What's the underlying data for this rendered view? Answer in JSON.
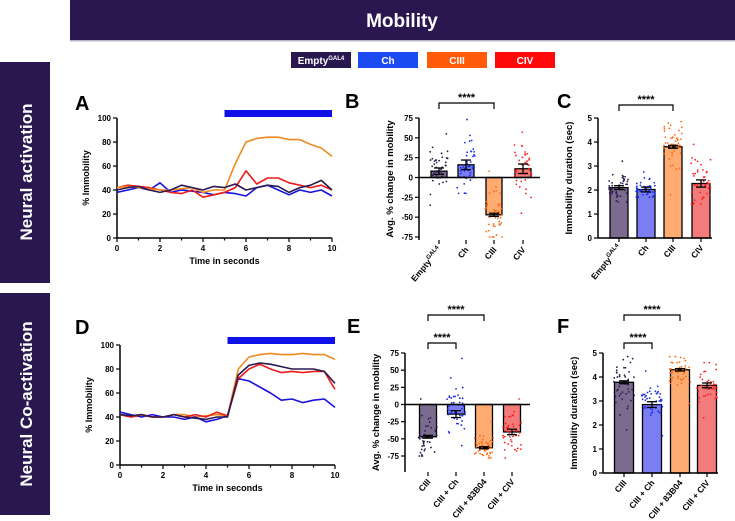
{
  "banner": {
    "title": "Mobility",
    "color": "#2b1750"
  },
  "legend": [
    {
      "label": "Empty",
      "sup": "GAL4",
      "color": "#2b1750"
    },
    {
      "label": "Ch",
      "color": "#1a4af0"
    },
    {
      "label": "CIII",
      "color": "#ff5a0a"
    },
    {
      "label": "CIV",
      "color": "#ff0a0a"
    }
  ],
  "row_labels": [
    "Neural activation",
    "Neural Co-activation"
  ],
  "chart_data": [
    {
      "panel": "A",
      "type": "line",
      "xlabel": "Time in seconds",
      "ylabel": "% Immobility",
      "xlim": [
        0,
        10
      ],
      "ylim": [
        0,
        100
      ],
      "xticks": [
        "0",
        "2",
        "4",
        "6",
        "8",
        "10"
      ],
      "yticks": [
        "0",
        "20",
        "40",
        "60",
        "80",
        "100"
      ],
      "stimulus": [
        5,
        10
      ],
      "stimulus_color": "#1010e8",
      "x": [
        0,
        0.5,
        1,
        1.5,
        2,
        2.5,
        3,
        3.5,
        4,
        4.5,
        5,
        5.5,
        6,
        6.5,
        7,
        7.5,
        8,
        8.5,
        9,
        9.5,
        10
      ],
      "series": [
        {
          "color": "#1a10e0",
          "values": [
            38,
            40,
            42,
            40,
            46,
            38,
            40,
            39,
            38,
            36,
            38,
            37,
            35,
            42,
            44,
            40,
            36,
            40,
            38,
            40,
            35
          ]
        },
        {
          "color": "#ef1a1a",
          "values": [
            42,
            44,
            43,
            42,
            40,
            38,
            37,
            40,
            34,
            36,
            38,
            42,
            56,
            45,
            50,
            50,
            46,
            44,
            42,
            44,
            40
          ]
        },
        {
          "color": "#f08a20",
          "values": [
            42,
            43,
            42,
            41,
            40,
            40,
            41,
            42,
            38,
            40,
            40,
            62,
            80,
            83,
            84,
            84,
            82,
            82,
            78,
            75,
            68
          ]
        },
        {
          "color": "#2b1a50",
          "values": [
            40,
            42,
            43,
            40,
            38,
            40,
            44,
            42,
            40,
            43,
            42,
            45,
            40,
            42,
            44,
            43,
            38,
            42,
            44,
            48,
            40
          ]
        }
      ]
    },
    {
      "panel": "B",
      "type": "bar",
      "ylabel": "Avg. % change in mobility",
      "ylim": [
        -75,
        75
      ],
      "yticks": [
        "-75",
        "-50",
        "-25",
        "0",
        "25",
        "50",
        "75"
      ],
      "categories": [
        {
          "label": "Empty",
          "sup": "GAL4"
        },
        {
          "label": "Ch"
        },
        {
          "label": "CIII"
        },
        {
          "label": "CIV"
        }
      ],
      "values": [
        8,
        16,
        -47,
        11
      ],
      "sem": [
        4,
        6,
        2,
        6
      ],
      "point_range": [
        [
          -35,
          55
        ],
        [
          -20,
          73
        ],
        [
          -75,
          8
        ],
        [
          -45,
          57
        ]
      ],
      "bar_colors": [
        "#7b6b8f",
        "#7a7ef2",
        "#ffab72",
        "#f37b7b"
      ],
      "point_colors": [
        "#2b1a50",
        "#1a2ee8",
        "#ff6a10",
        "#ff2020"
      ],
      "significance": [
        {
          "from": 0,
          "to": 2,
          "label": "****"
        }
      ]
    },
    {
      "panel": "C",
      "type": "bar",
      "ylabel": "Immobility duration (sec)",
      "ylim": [
        0,
        5
      ],
      "yticks": [
        "0",
        "1",
        "2",
        "3",
        "4",
        "5"
      ],
      "categories": [
        {
          "label": "Empty",
          "sup": "GAL4"
        },
        {
          "label": "Ch"
        },
        {
          "label": "CIII"
        },
        {
          "label": "CIV"
        }
      ],
      "values": [
        2.1,
        2.02,
        3.8,
        2.27
      ],
      "sem": [
        0.08,
        0.1,
        0.06,
        0.15
      ],
      "point_range": [
        [
          1.5,
          3.2
        ],
        [
          1.7,
          2.75
        ],
        [
          1.8,
          4.85
        ],
        [
          1.4,
          3.9
        ]
      ],
      "bar_colors": [
        "#7b6b8f",
        "#7a7ef2",
        "#ffab72",
        "#f37b7b"
      ],
      "point_colors": [
        "#2b1a50",
        "#1a2ee8",
        "#ff6a10",
        "#ff2020"
      ],
      "significance": [
        {
          "from": 0,
          "to": 2,
          "label": "****"
        }
      ]
    },
    {
      "panel": "D",
      "type": "line",
      "xlabel": "Time in seconds",
      "ylabel": "% Immobility",
      "xlim": [
        0,
        10
      ],
      "ylim": [
        0,
        100
      ],
      "xticks": [
        "0",
        "2",
        "4",
        "6",
        "8",
        "10"
      ],
      "yticks": [
        "0",
        "20",
        "40",
        "60",
        "80",
        "100"
      ],
      "stimulus": [
        5,
        10
      ],
      "stimulus_color": "#1010e8",
      "x": [
        0,
        0.5,
        1,
        1.5,
        2,
        2.5,
        3,
        3.5,
        4,
        4.5,
        5,
        5.5,
        6,
        6.5,
        7,
        7.5,
        8,
        8.5,
        9,
        9.5,
        10
      ],
      "series": [
        {
          "color": "#f08a20",
          "values": [
            42,
            40,
            41,
            40,
            40,
            42,
            42,
            40,
            41,
            42,
            41,
            80,
            90,
            92,
            93,
            92,
            92,
            93,
            92,
            92,
            88
          ]
        },
        {
          "color": "#1a10e0",
          "values": [
            44,
            42,
            40,
            42,
            40,
            40,
            38,
            40,
            36,
            38,
            41,
            72,
            70,
            65,
            60,
            54,
            55,
            52,
            54,
            55,
            48
          ]
        },
        {
          "color": "#ef1a1a",
          "values": [
            42,
            40,
            42,
            40,
            40,
            42,
            40,
            42,
            40,
            44,
            41,
            72,
            80,
            84,
            80,
            77,
            78,
            77,
            78,
            78,
            63
          ]
        },
        {
          "color": "#2b1a50",
          "values": [
            42,
            41,
            42,
            40,
            40,
            42,
            40,
            39,
            38,
            40,
            40,
            75,
            83,
            85,
            84,
            82,
            80,
            80,
            80,
            78,
            68
          ]
        }
      ]
    },
    {
      "panel": "E",
      "type": "bar",
      "ylabel": "Avg. % change in mobility",
      "ylim": [
        -75,
        75
      ],
      "yticks": [
        "-75",
        "-50",
        "-25",
        "0",
        "25",
        "50",
        "75"
      ],
      "categories": [
        {
          "label": "CIII"
        },
        {
          "label": "CIII + Ch"
        },
        {
          "label": "CIII + 83B04"
        },
        {
          "label": "CIII + CIV"
        }
      ],
      "values": [
        -47,
        -14,
        -63,
        -40
      ],
      "sem": [
        2,
        5,
        1.5,
        4
      ],
      "point_range": [
        [
          -75,
          8
        ],
        [
          -60,
          67
        ],
        [
          -78,
          -25
        ],
        [
          -78,
          8
        ]
      ],
      "bar_colors": [
        "#7b6b8f",
        "#7a7ef2",
        "#ffab72",
        "#f37b7b"
      ],
      "point_colors": [
        "#2b1a50",
        "#1a2ee8",
        "#ff6a10",
        "#ff2020"
      ],
      "significance": [
        {
          "from": 0,
          "to": 1,
          "label": "****"
        },
        {
          "from": 0,
          "to": 2,
          "label": "****"
        }
      ]
    },
    {
      "panel": "F",
      "type": "bar",
      "ylabel": "Immobility duration (sec)",
      "ylim": [
        0,
        5
      ],
      "yticks": [
        "0",
        "1",
        "2",
        "3",
        "4",
        "5"
      ],
      "categories": [
        {
          "label": "CIII"
        },
        {
          "label": "CIII + Ch"
        },
        {
          "label": "CIII + 83B04"
        },
        {
          "label": "CIII + CIV"
        }
      ],
      "values": [
        3.78,
        2.85,
        4.3,
        3.65
      ],
      "sem": [
        0.06,
        0.12,
        0.05,
        0.1
      ],
      "point_range": [
        [
          1.8,
          4.85
        ],
        [
          1.55,
          4.25
        ],
        [
          2.9,
          4.85
        ],
        [
          2.3,
          4.6
        ]
      ],
      "bar_colors": [
        "#7b6b8f",
        "#7a7ef2",
        "#ffab72",
        "#f37b7b"
      ],
      "point_colors": [
        "#2b1a50",
        "#1a2ee8",
        "#ff6a10",
        "#ff2020"
      ],
      "significance": [
        {
          "from": 0,
          "to": 1,
          "label": "****"
        },
        {
          "from": 0,
          "to": 2,
          "label": "****"
        }
      ]
    }
  ]
}
